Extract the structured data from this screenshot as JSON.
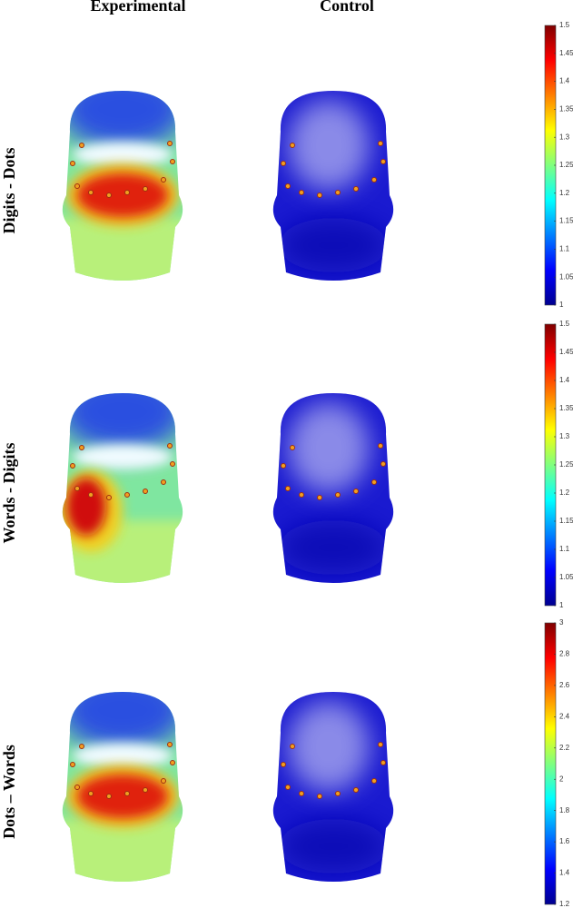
{
  "columns": [
    "Experimental",
    "Control"
  ],
  "rows": [
    {
      "label": "Digits - Dots",
      "colorbar": {
        "lim": [
          1,
          1.5
        ],
        "ticks": [
          1.5,
          1.45,
          1.4,
          1.35,
          1.3,
          1.25,
          1.2,
          1.15,
          1.1,
          1.05,
          1
        ]
      }
    },
    {
      "label": "Words - Digits",
      "colorbar": {
        "lim": [
          1,
          1.5
        ],
        "ticks": [
          1.5,
          1.45,
          1.4,
          1.35,
          1.3,
          1.25,
          1.2,
          1.15,
          1.1,
          1.05,
          1
        ]
      }
    },
    {
      "label": "Dots – Words",
      "colorbar": {
        "lim": [
          1.2,
          3
        ],
        "ticks": [
          3,
          2.8,
          2.6,
          2.4,
          2.2,
          2,
          1.8,
          1.6,
          1.4,
          1.2
        ]
      }
    }
  ]
}
